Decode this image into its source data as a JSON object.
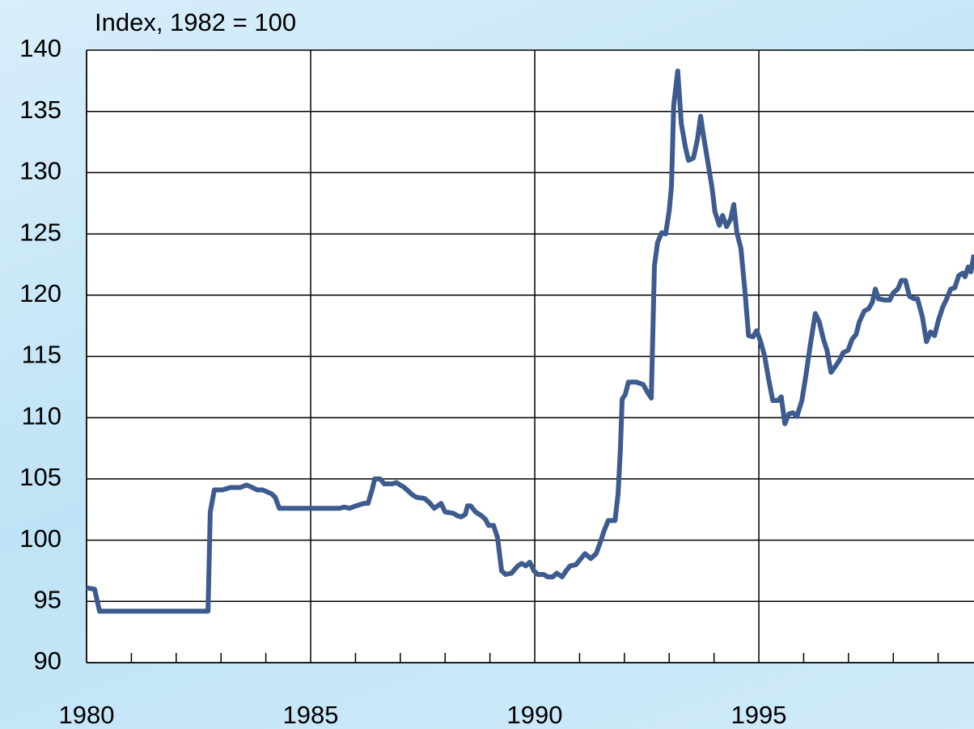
{
  "chart_data": {
    "type": "line",
    "title": "Index, 1982 = 100",
    "xlim": [
      1980,
      1999.8
    ],
    "xticks": [
      1980,
      1985,
      1990,
      1995
    ],
    "xminorticks": [
      1981,
      1982,
      1983,
      1984,
      1986,
      1987,
      1988,
      1989,
      1991,
      1992,
      1993,
      1994,
      1996,
      1997,
      1998,
      1999
    ],
    "ylim": [
      90,
      140
    ],
    "yticks": [
      90,
      95,
      100,
      105,
      110,
      115,
      120,
      125,
      130,
      135,
      140
    ],
    "grid": true,
    "series": [
      {
        "color": "#3d5b8e",
        "x": [
          1980.0,
          1980.18,
          1980.29,
          1982.71,
          1982.76,
          1982.85,
          1983.03,
          1983.21,
          1983.43,
          1983.57,
          1983.7,
          1983.81,
          1983.93,
          1984.12,
          1984.21,
          1984.3,
          1985.65,
          1985.74,
          1985.87,
          1986.01,
          1986.19,
          1986.28,
          1986.37,
          1986.43,
          1986.55,
          1986.64,
          1986.82,
          1986.91,
          1987.09,
          1987.27,
          1987.36,
          1987.54,
          1987.64,
          1987.76,
          1987.91,
          1988.0,
          1988.18,
          1988.27,
          1988.36,
          1988.45,
          1988.5,
          1988.57,
          1988.68,
          1988.81,
          1988.9,
          1988.97,
          1989.08,
          1989.17,
          1989.26,
          1989.35,
          1989.48,
          1989.62,
          1989.71,
          1989.8,
          1989.89,
          1989.98,
          1990.07,
          1990.2,
          1990.29,
          1990.4,
          1990.49,
          1990.61,
          1990.7,
          1990.79,
          1990.92,
          1991.03,
          1991.12,
          1991.25,
          1991.37,
          1991.46,
          1991.55,
          1991.64,
          1991.79,
          1991.86,
          1991.91,
          1991.95,
          1992.02,
          1992.09,
          1992.27,
          1992.42,
          1992.51,
          1992.6,
          1992.67,
          1992.74,
          1992.83,
          1992.92,
          1993.0,
          1993.05,
          1993.1,
          1993.19,
          1993.27,
          1993.36,
          1993.43,
          1993.54,
          1993.63,
          1993.7,
          1993.77,
          1993.86,
          1993.95,
          1994.02,
          1994.12,
          1994.19,
          1994.28,
          1994.37,
          1994.44,
          1994.51,
          1994.6,
          1994.69,
          1994.77,
          1994.87,
          1994.95,
          1995.04,
          1995.13,
          1995.22,
          1995.31,
          1995.43,
          1995.5,
          1995.58,
          1995.67,
          1995.76,
          1995.85,
          1995.96,
          1996.06,
          1996.15,
          1996.26,
          1996.35,
          1996.44,
          1996.52,
          1996.61,
          1996.71,
          1996.8,
          1996.88,
          1996.99,
          1997.08,
          1997.17,
          1997.24,
          1997.35,
          1997.45,
          1997.53,
          1997.6,
          1997.67,
          1997.8,
          1997.92,
          1998.0,
          1998.1,
          1998.18,
          1998.27,
          1998.36,
          1998.47,
          1998.54,
          1998.65,
          1998.74,
          1998.83,
          1998.92,
          1999.01,
          1999.1,
          1999.19,
          1999.28,
          1999.37,
          1999.46,
          1999.55,
          1999.6,
          1999.67,
          1999.73,
          1999.8
        ],
        "values": [
          96.1,
          96.0,
          94.2,
          94.2,
          102.3,
          104.1,
          104.1,
          104.3,
          104.3,
          104.5,
          104.3,
          104.1,
          104.1,
          103.8,
          103.5,
          102.6,
          102.6,
          102.7,
          102.6,
          102.8,
          103.0,
          103.0,
          104.1,
          105.0,
          105.0,
          104.6,
          104.6,
          104.7,
          104.3,
          103.7,
          103.5,
          103.4,
          103.1,
          102.6,
          103.0,
          102.3,
          102.2,
          102.0,
          101.9,
          102.1,
          102.8,
          102.8,
          102.3,
          102.0,
          101.7,
          101.2,
          101.2,
          100.2,
          97.5,
          97.2,
          97.3,
          97.9,
          98.1,
          97.9,
          98.2,
          97.5,
          97.2,
          97.2,
          97.0,
          97.0,
          97.3,
          97.0,
          97.5,
          97.9,
          98.0,
          98.5,
          98.9,
          98.5,
          98.9,
          99.8,
          100.8,
          101.6,
          101.6,
          103.8,
          107.4,
          111.5,
          111.9,
          112.9,
          112.9,
          112.7,
          112.1,
          111.6,
          122.4,
          124.3,
          125.1,
          125.0,
          126.9,
          128.9,
          135.5,
          138.3,
          134.0,
          132.1,
          131.0,
          131.2,
          132.7,
          134.6,
          132.9,
          130.9,
          128.9,
          126.8,
          125.7,
          126.5,
          125.6,
          126.2,
          127.4,
          125.1,
          123.8,
          120.3,
          116.7,
          116.6,
          117.1,
          116.2,
          115.0,
          113.1,
          111.4,
          111.4,
          111.7,
          109.5,
          110.3,
          110.4,
          110.1,
          111.4,
          113.7,
          116.0,
          118.5,
          117.8,
          116.4,
          115.5,
          113.7,
          114.2,
          114.7,
          115.3,
          115.5,
          116.4,
          116.8,
          117.8,
          118.7,
          118.9,
          119.4,
          120.5,
          119.7,
          119.6,
          119.6,
          120.2,
          120.5,
          121.2,
          121.2,
          119.9,
          119.7,
          119.7,
          118.2,
          116.2,
          117.0,
          116.7,
          118.0,
          119.0,
          119.7,
          120.5,
          120.6,
          121.6,
          121.8,
          121.5,
          122.3,
          121.9,
          123.3
        ]
      }
    ]
  }
}
